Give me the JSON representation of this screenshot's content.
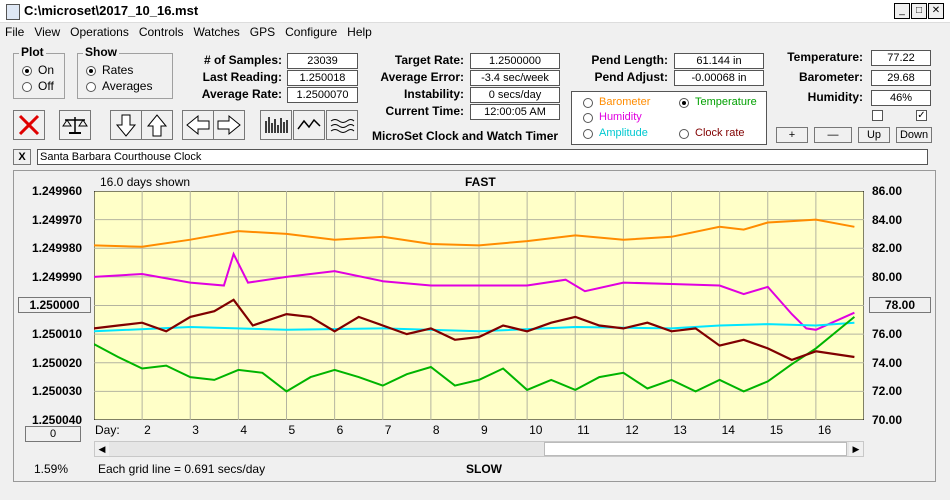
{
  "window": {
    "title": "C:\\microset\\2017_10_16.mst"
  },
  "menu": [
    "File",
    "View",
    "Operations",
    "Controls",
    "Watches",
    "GPS",
    "Configure",
    "Help"
  ],
  "plot_group": {
    "title": "Plot",
    "on": "On",
    "off": "Off",
    "selected": "On"
  },
  "show_group": {
    "title": "Show",
    "rates": "Rates",
    "averages": "Averages",
    "selected": "Rates"
  },
  "stats": {
    "samples_label": "# of Samples:",
    "samples": "23039",
    "last_label": "Last Reading:",
    "last": "1.250018",
    "avg_label": "Average Rate:",
    "avg": "1.2500070",
    "target_label": "Target Rate:",
    "target": "1.2500000",
    "averr_label": "Average Error:",
    "averr": "-3.4 sec/week",
    "instab_label": "Instability:",
    "instab": "0 secs/day",
    "time_label": "Current Time:",
    "time": "12:00:05 AM",
    "pend_len_label": "Pend Length:",
    "pend_len": "61.144 in",
    "pend_adj_label": "Pend Adjust:",
    "pend_adj": "-0.00068 in",
    "temp_label": "Temperature:",
    "temp": "77.22",
    "baro_label": "Barometer:",
    "baro": "29.68",
    "hum_label": "Humidity:",
    "hum": "46%"
  },
  "app_caption": "MicroSet Clock and Watch Timer",
  "sensor_options": [
    {
      "label": "Barometer",
      "color": "#ff8c00",
      "selected": false
    },
    {
      "label": "Temperature",
      "color": "#00a000",
      "selected": true
    },
    {
      "label": "Humidity",
      "color": "#e000e0",
      "selected": false
    },
    {
      "label": "Amplitude",
      "color": "#00c8d0",
      "selected": false
    },
    {
      "label": "Clock rate",
      "color": "#800000",
      "selected": false
    }
  ],
  "right_buttons": {
    "plus": "+",
    "minus": "—",
    "up": "Up",
    "down": "Down"
  },
  "checkbox_states": [
    false,
    true
  ],
  "name_field": {
    "value": "Santa Barbara Courthouse Clock",
    "close": "X"
  },
  "chart_header": {
    "days_shown": "16.0 days shown",
    "fast": "FAST",
    "slow": "SLOW",
    "grid_note": "Each grid line = 0.691 secs/day",
    "percent": "1.59%"
  },
  "left_axis_button": "1.250000",
  "right_axis_button": "78.00",
  "zero_button": "0",
  "colors": {
    "plot_bg": "#ffffc8",
    "baro": "#ff8c00",
    "hum": "#e000e0",
    "amp": "#00e6ff",
    "temp": "#00b400",
    "rate": "#800000"
  },
  "chart_data": {
    "type": "line",
    "x_label": "Day:",
    "x_ticks": [
      2,
      3,
      4,
      5,
      6,
      7,
      8,
      9,
      10,
      11,
      12,
      13,
      14,
      15,
      16
    ],
    "y_left_ticks": [
      "1.249960",
      "1.249970",
      "1.249980",
      "1.249990",
      "1.250000",
      "1.250010",
      "1.250020",
      "1.250030",
      "1.250040"
    ],
    "y_left_range": [
      1.24996,
      1.25004
    ],
    "y_left_inverted": true,
    "y_right_ticks": [
      "86.00",
      "84.00",
      "82.00",
      "80.00",
      "78.00",
      "76.00",
      "74.00",
      "72.00",
      "70.00"
    ],
    "y_right_range": [
      70,
      86
    ],
    "x_range": [
      1,
      17
    ],
    "grid": true,
    "series": [
      {
        "name": "Barometer",
        "color": "#ff8c00",
        "axis": "right",
        "x": [
          1,
          2,
          3,
          4,
          5,
          6,
          7,
          8,
          9,
          10,
          11,
          12,
          13,
          14,
          14.5,
          15,
          15.5,
          16,
          16.8
        ],
        "y": [
          82.2,
          82.1,
          82.6,
          83.2,
          83.0,
          82.6,
          82.8,
          82.3,
          82.2,
          82.5,
          82.9,
          82.6,
          82.8,
          83.5,
          83.3,
          83.8,
          83.9,
          84.0,
          83.5
        ]
      },
      {
        "name": "Humidity",
        "color": "#e000e0",
        "axis": "right",
        "x": [
          1,
          2,
          3,
          3.7,
          3.9,
          4.2,
          5,
          6,
          7,
          8,
          9,
          10,
          10.8,
          11.2,
          12,
          13,
          14,
          14.5,
          15,
          15.5,
          15.8,
          16,
          16.8
        ],
        "y": [
          80.0,
          80.2,
          79.6,
          79.4,
          81.6,
          79.6,
          80.0,
          80.4,
          79.7,
          79.4,
          79.4,
          79.4,
          79.8,
          79.0,
          79.6,
          79.5,
          79.4,
          78.8,
          79.3,
          77.4,
          76.4,
          76.3,
          77.5
        ]
      },
      {
        "name": "Amplitude",
        "color": "#00e6ff",
        "axis": "right",
        "x": [
          1,
          3,
          5,
          7,
          9,
          11,
          13,
          14,
          15,
          16,
          16.8
        ],
        "y": [
          76.2,
          76.5,
          76.3,
          76.4,
          76.2,
          76.5,
          76.4,
          76.6,
          76.7,
          76.6,
          76.8
        ]
      },
      {
        "name": "Temperature",
        "color": "#00b400",
        "axis": "right",
        "x": [
          1,
          1.5,
          2,
          2.5,
          3,
          3.5,
          4,
          4.5,
          5,
          5.5,
          6,
          6.5,
          7,
          7.5,
          8,
          8.5,
          9,
          9.5,
          10,
          10.5,
          11,
          11.5,
          12,
          12.5,
          13,
          13.5,
          14,
          14.5,
          15,
          15.5,
          16,
          16.8
        ],
        "y": [
          75.3,
          74.4,
          73.6,
          73.8,
          73.0,
          72.8,
          73.5,
          73.3,
          72.0,
          73.0,
          73.5,
          73.0,
          72.4,
          73.2,
          73.7,
          72.4,
          72.8,
          73.6,
          72.1,
          72.8,
          72.1,
          73.0,
          73.3,
          72.2,
          72.8,
          72.0,
          72.8,
          72.0,
          72.7,
          73.9,
          75.0,
          77.2
        ]
      },
      {
        "name": "Clock rate",
        "color": "#800000",
        "axis": "left",
        "x": [
          1,
          1.5,
          2,
          2.5,
          3,
          3.5,
          3.9,
          4.3,
          5,
          5.5,
          6,
          6.5,
          7,
          7.5,
          8,
          8.5,
          9,
          9.5,
          10,
          10.5,
          11,
          11.5,
          12,
          12.5,
          13,
          13.5,
          14,
          14.5,
          15,
          15.5,
          16,
          16.8
        ],
        "y": [
          1.250008,
          1.250007,
          1.250006,
          1.250009,
          1.250004,
          1.250002,
          1.249998,
          1.250007,
          1.250003,
          1.250004,
          1.250009,
          1.250004,
          1.250007,
          1.25001,
          1.250008,
          1.250012,
          1.250011,
          1.250007,
          1.250009,
          1.250006,
          1.250004,
          1.250007,
          1.250008,
          1.250006,
          1.250009,
          1.250008,
          1.250014,
          1.250012,
          1.250015,
          1.250019,
          1.250016,
          1.250018
        ]
      }
    ]
  }
}
